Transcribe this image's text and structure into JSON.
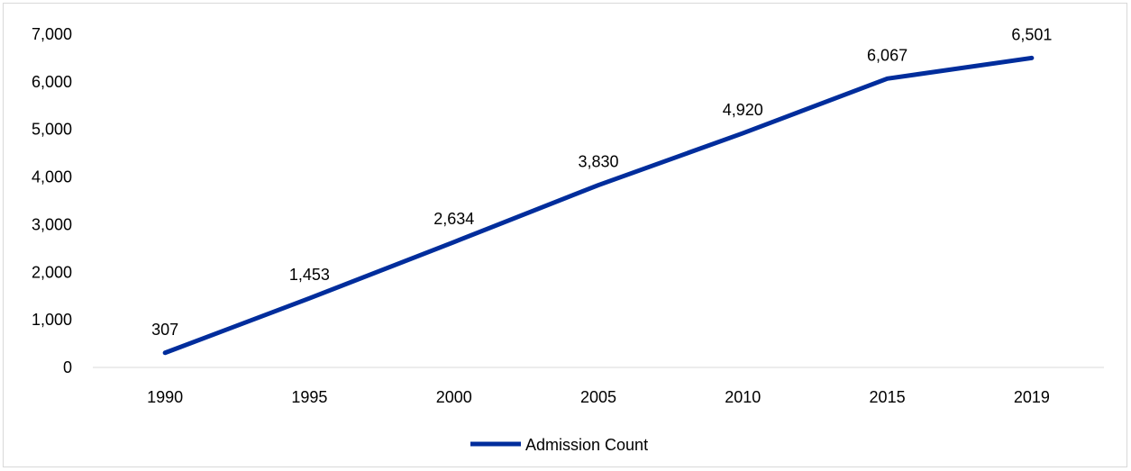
{
  "chart_data": {
    "type": "line",
    "title": "",
    "xlabel": "",
    "ylabel": "",
    "categories": [
      "1990",
      "1995",
      "2000",
      "2005",
      "2010",
      "2015",
      "2019"
    ],
    "ylim": [
      0,
      7000
    ],
    "y_ticks": [
      "0",
      "1,000",
      "2,000",
      "3,000",
      "4,000",
      "5,000",
      "6,000",
      "7,000"
    ],
    "grid": false,
    "legend_position": "bottom",
    "series": [
      {
        "name": "Admission Count",
        "color": "#002D9C",
        "values": [
          307,
          1453,
          2634,
          3830,
          4920,
          6067,
          6501
        ],
        "data_labels": [
          "307",
          "1,453",
          "2,634",
          "3,830",
          "4,920",
          "6,067",
          "6,501"
        ]
      }
    ]
  }
}
